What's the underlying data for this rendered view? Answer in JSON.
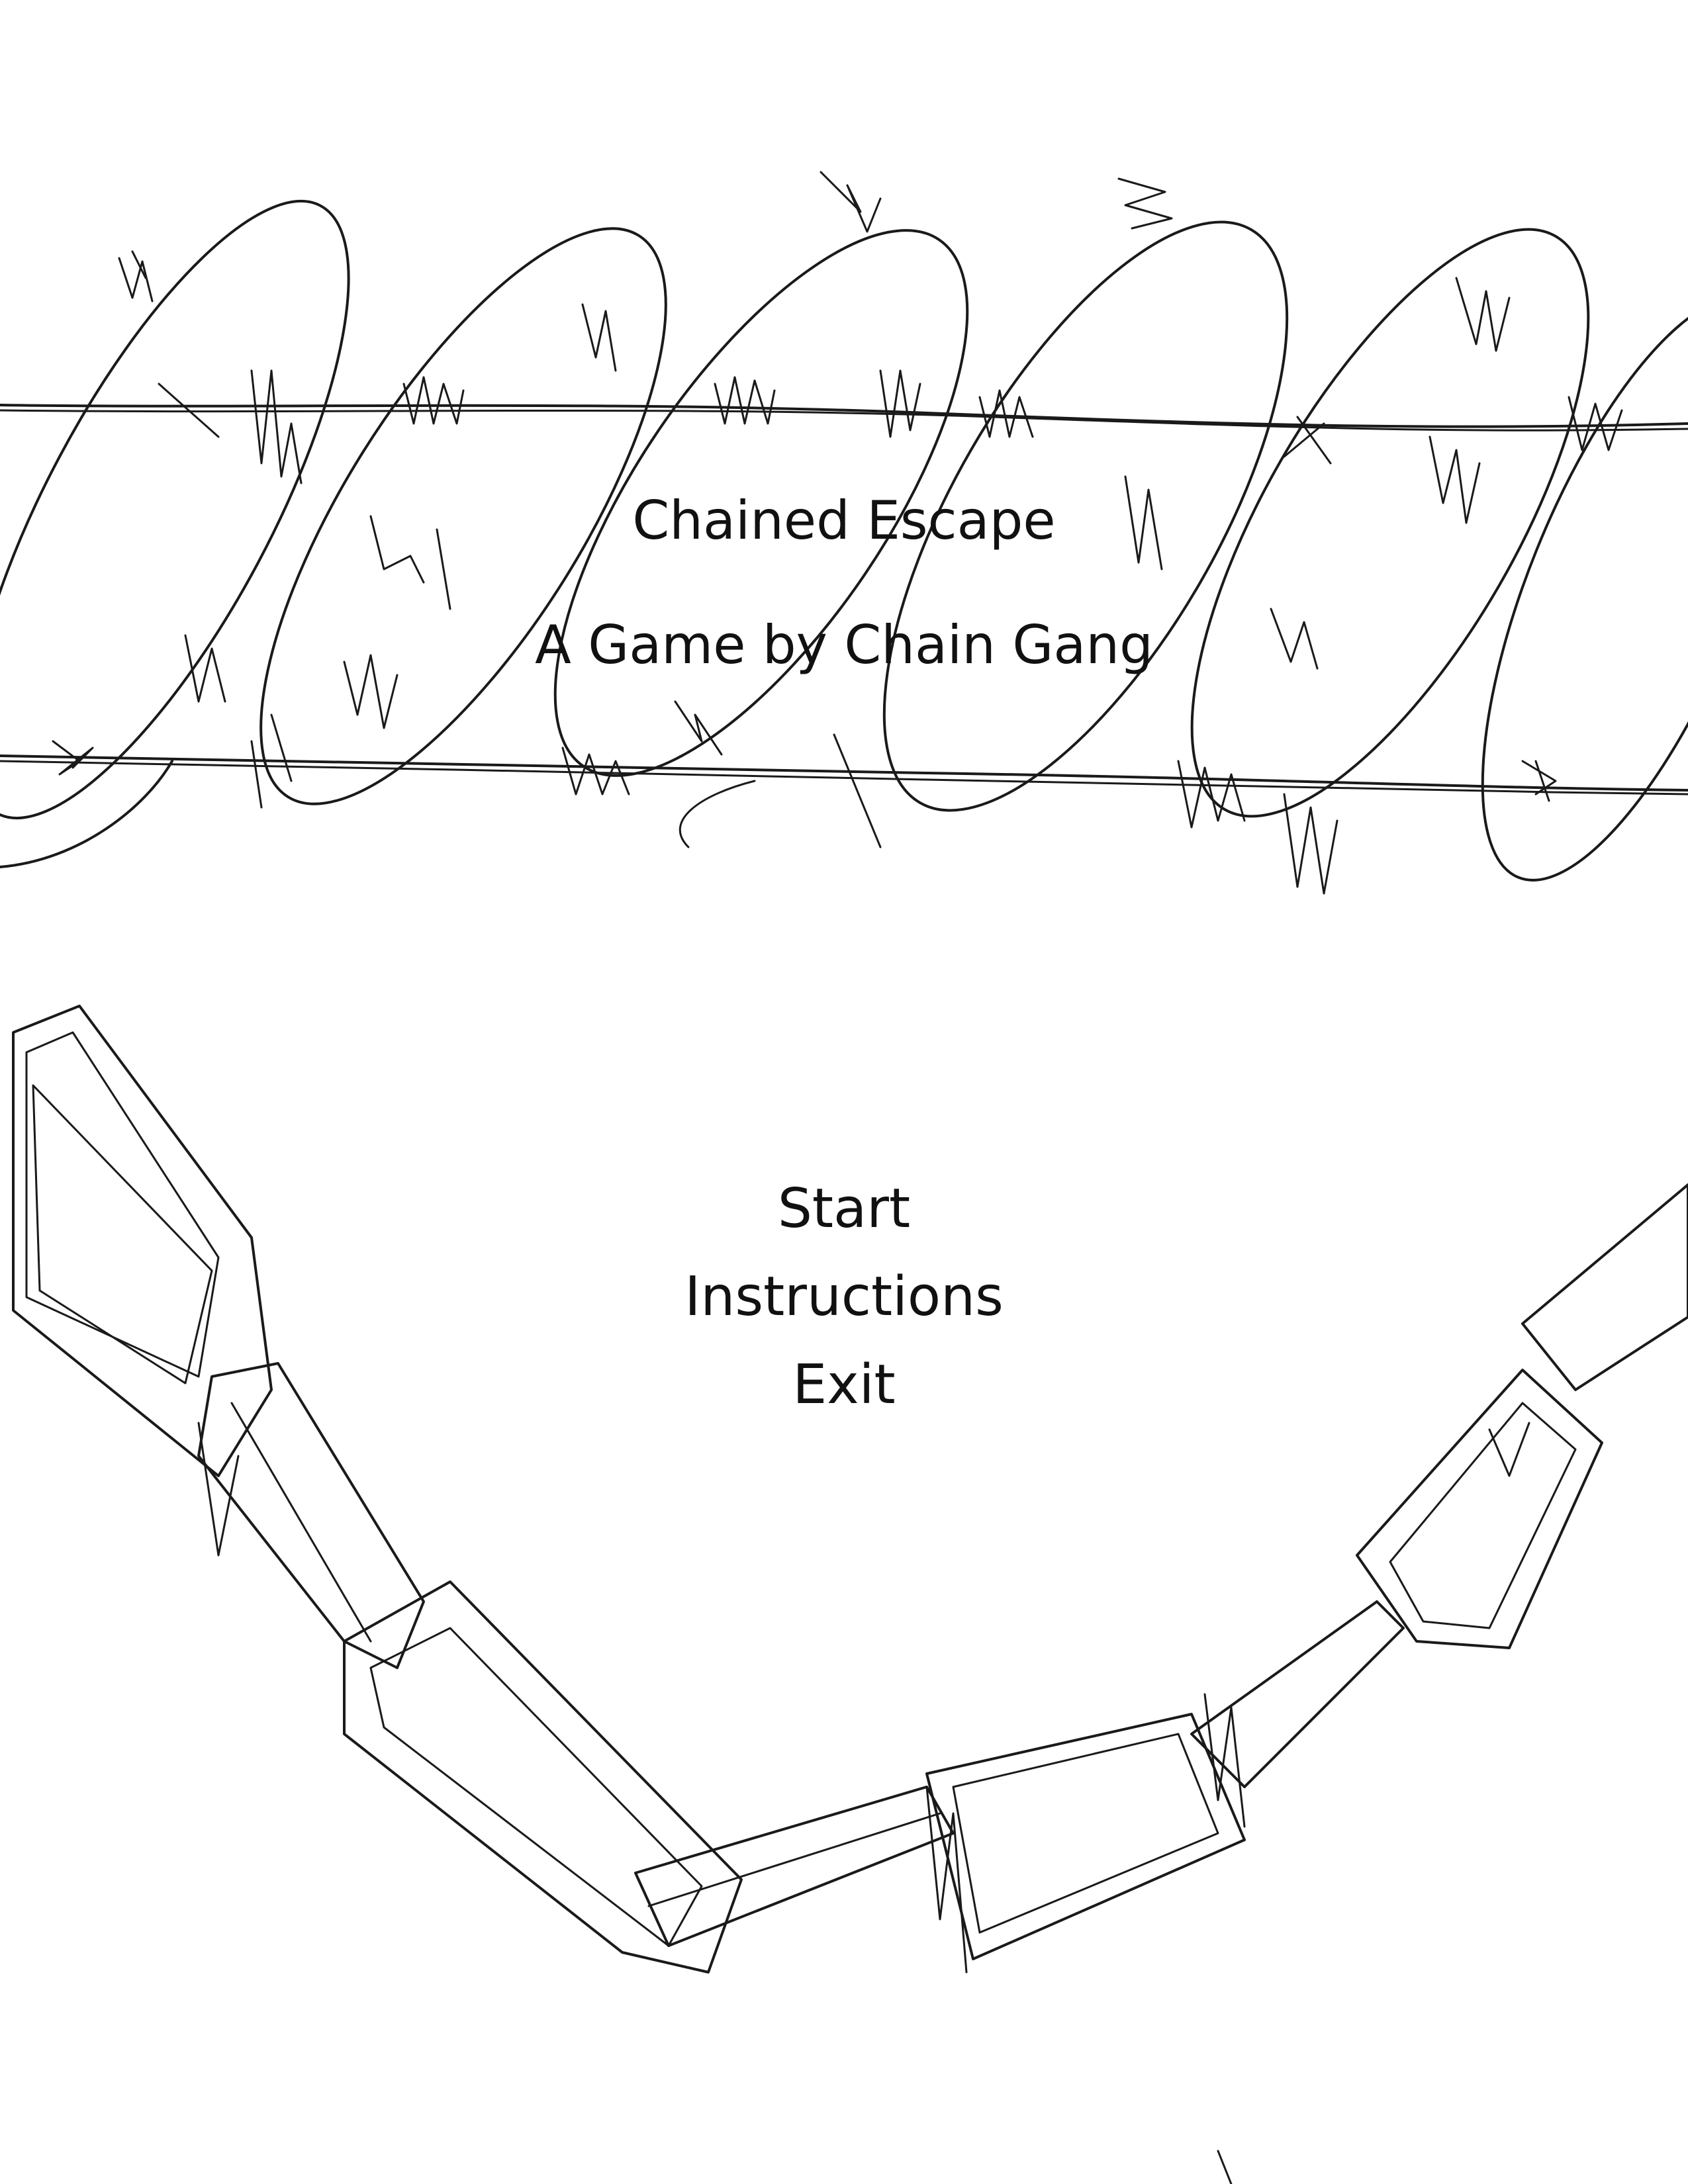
{
  "title": {
    "game_name": "Chained Escape",
    "credit": "A Game by Chain Gang"
  },
  "menu": {
    "items": [
      {
        "label": "Start"
      },
      {
        "label": "Instructions"
      },
      {
        "label": "Exit"
      }
    ]
  },
  "artwork": {
    "top": "barbed-wire-coil",
    "bottom": "hanging-chain"
  },
  "colors": {
    "background": "#ffffff",
    "ink": "#1a1a1a"
  }
}
